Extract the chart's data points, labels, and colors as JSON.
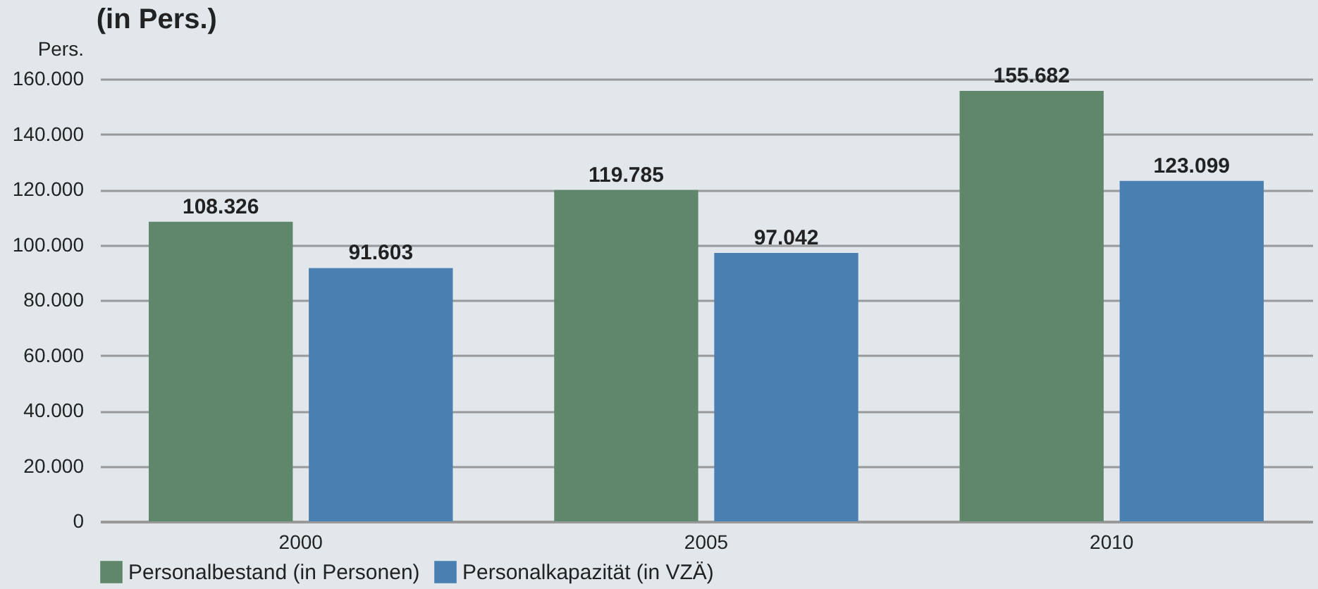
{
  "chart_data": {
    "type": "bar",
    "title": "(in Pers.)",
    "ylabel": "Pers.",
    "categories": [
      "2000",
      "2005",
      "2010"
    ],
    "series": [
      {
        "name": "Personalbestand (in Personen)",
        "color": "#5f876a",
        "values": [
          108326,
          119785,
          155682
        ],
        "value_labels": [
          "108.326",
          "119.785",
          "155.682"
        ]
      },
      {
        "name": "Personalkapazität (in VZÄ)",
        "color": "#4a80b1",
        "values": [
          91603,
          97042,
          123099
        ],
        "value_labels": [
          "91.603",
          "97.042",
          "123.099"
        ]
      }
    ],
    "ylim": [
      0,
      160000
    ],
    "yticks": [
      {
        "value": 0,
        "label": "0"
      },
      {
        "value": 20000,
        "label": "20.000"
      },
      {
        "value": 40000,
        "label": "40.000"
      },
      {
        "value": 60000,
        "label": "60.000"
      },
      {
        "value": 80000,
        "label": "80.000"
      },
      {
        "value": 100000,
        "label": "100.000"
      },
      {
        "value": 120000,
        "label": "120.000"
      },
      {
        "value": 140000,
        "label": "140.000"
      },
      {
        "value": 160000,
        "label": "160.000"
      }
    ],
    "grid": "y",
    "legend": "bottom left"
  }
}
